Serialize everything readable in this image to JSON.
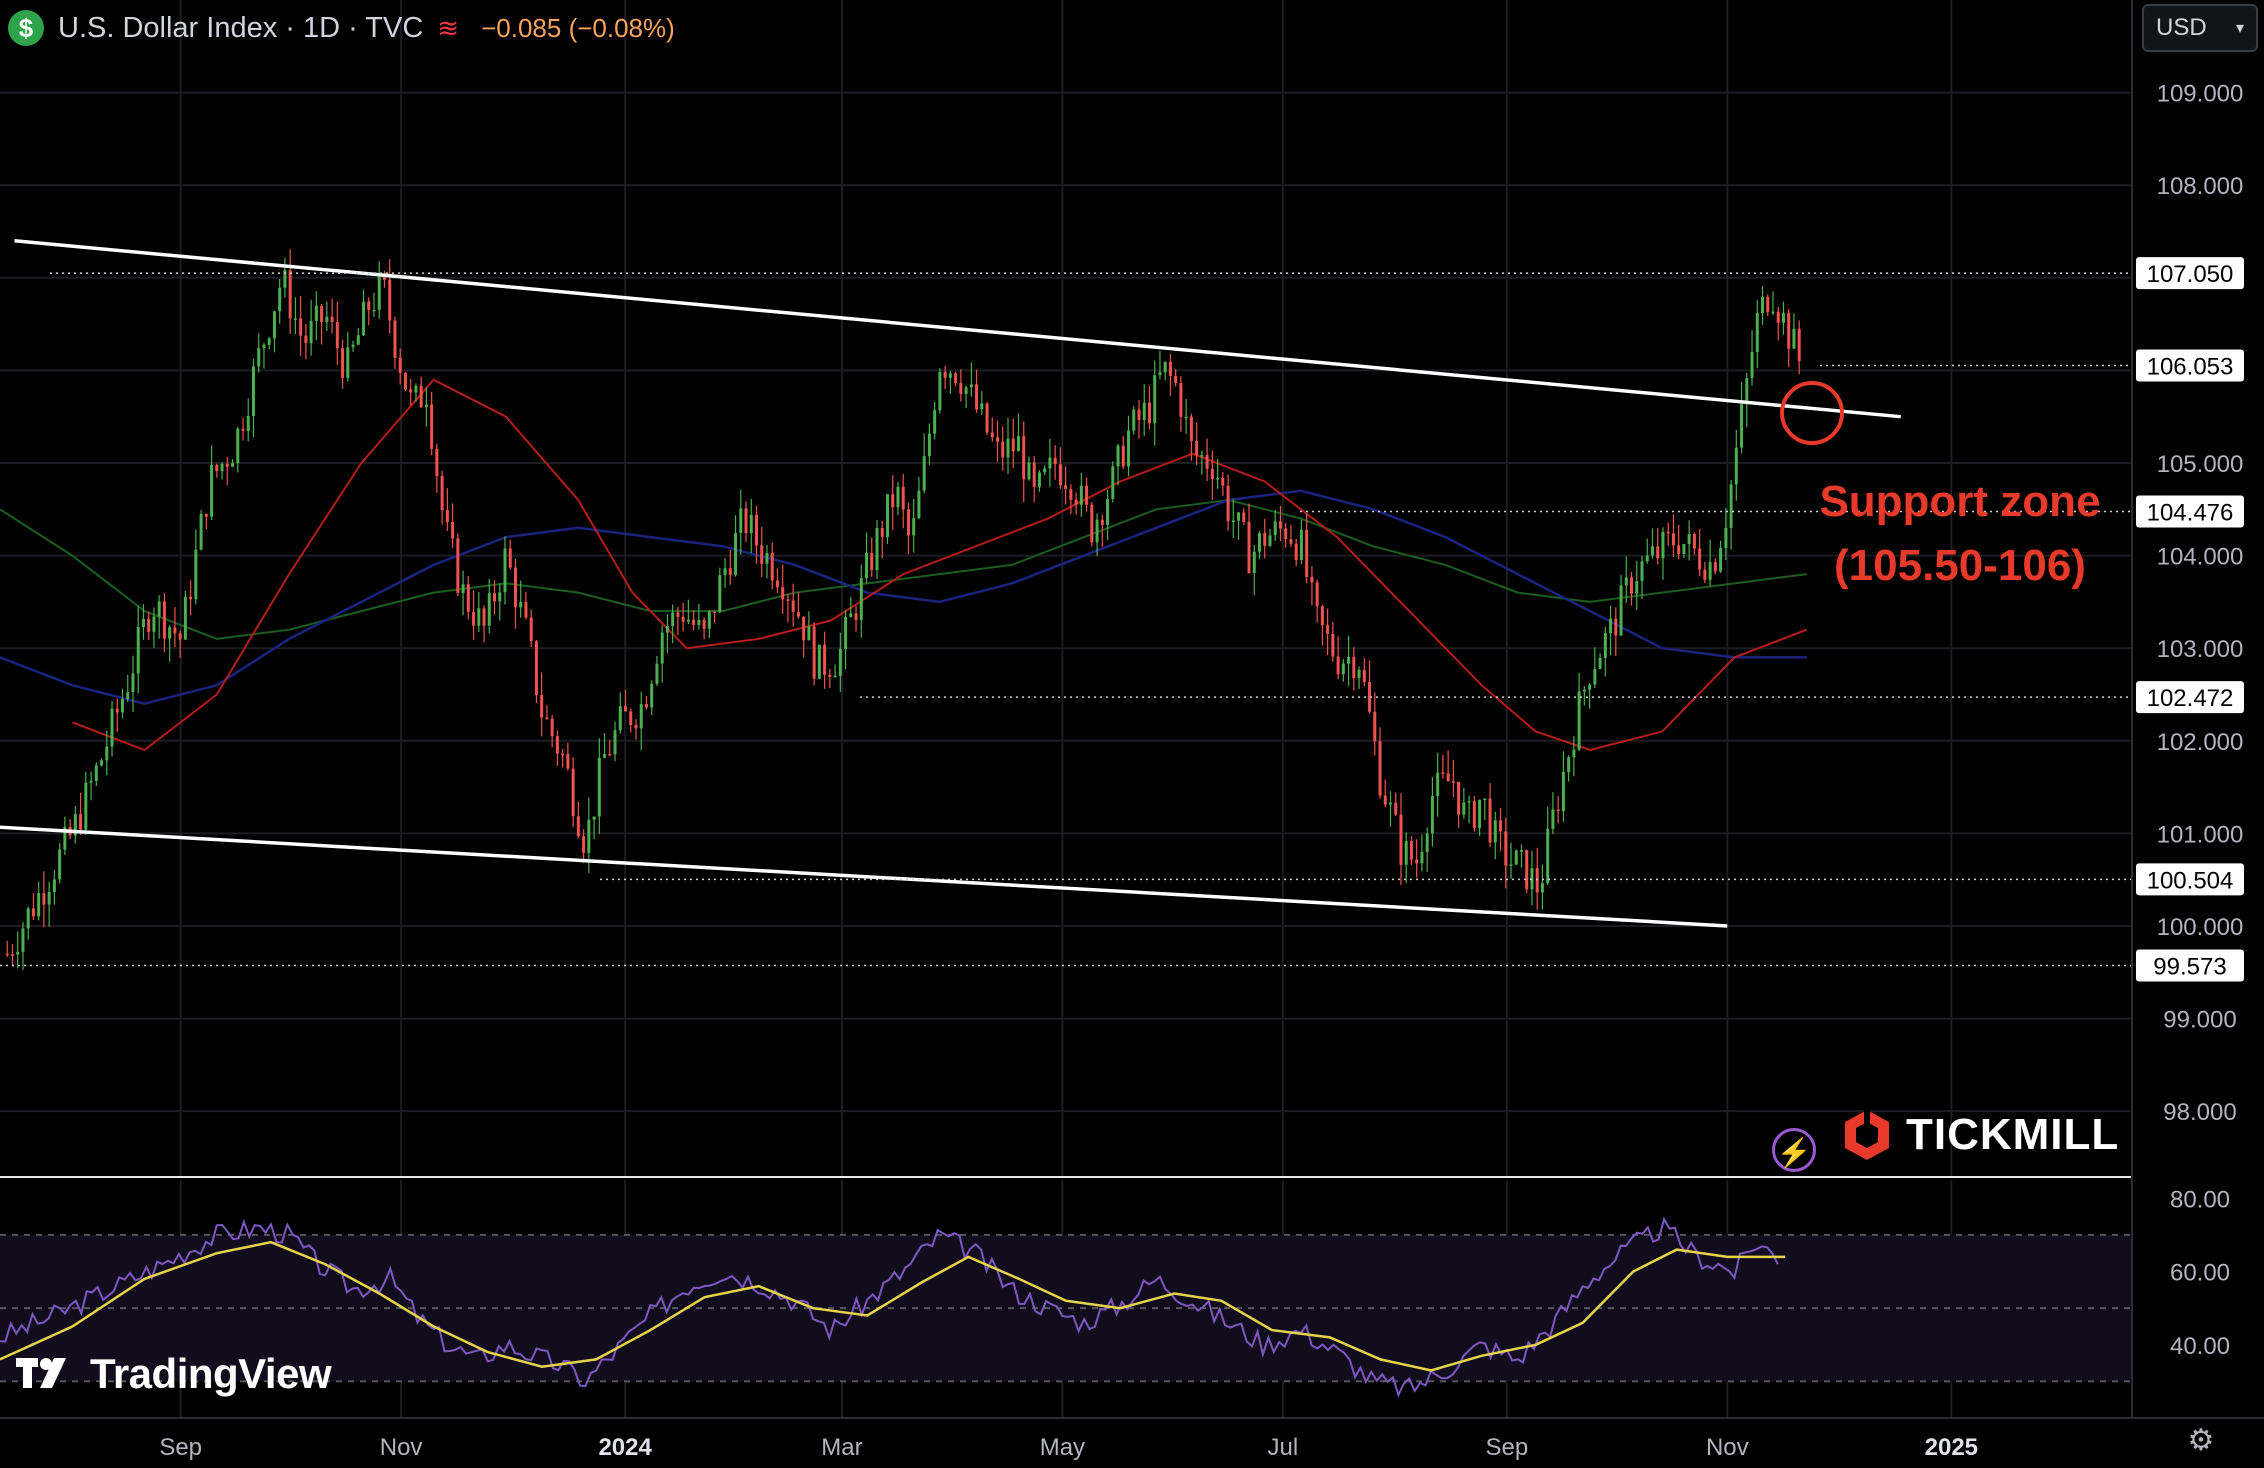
{
  "header": {
    "title": "U.S. Dollar Index · 1D · TVC",
    "change": "−0.085 (−0.08%)",
    "icon": "dollar-icon",
    "wave_icon": "wave-icon"
  },
  "currency_selector": {
    "value": "USD"
  },
  "annotation": {
    "line1": "Support zone",
    "line2": "(105.50-106)"
  },
  "branding": {
    "broker": "TICKMILL",
    "platform": "TradingView"
  },
  "colors": {
    "up": "#26a69a",
    "up_green": "#4caf50",
    "down": "#ef5350",
    "ma_red": "#b71c1c",
    "ma_blue": "#1a237e",
    "ma_green": "#1b5e20",
    "rsi": "#7e57c2",
    "rsi_signal": "#e6d34a",
    "annotation": "#e83a2a"
  },
  "chart_data": {
    "type": "candlestick",
    "price_axis": {
      "min": 97.3,
      "max": 110.0,
      "ticks": [
        "109.000",
        "108.000",
        "105.000",
        "104.000",
        "103.000",
        "102.000",
        "101.000",
        "100.000",
        "99.000",
        "98.000"
      ]
    },
    "price_tags": [
      "107.050",
      "106.053",
      "104.476",
      "102.472",
      "100.504",
      "99.573"
    ],
    "price_tag_values": [
      107.05,
      106.053,
      104.476,
      102.472,
      100.504,
      99.573
    ],
    "time_labels": [
      "Sep",
      "Nov",
      "2024",
      "Mar",
      "May",
      "Jul",
      "Sep",
      "Nov",
      "2025"
    ],
    "time_label_days": [
      30,
      91,
      153,
      213,
      274,
      335,
      397,
      458,
      520
    ],
    "day_range": [
      -20,
      570
    ],
    "price_path": [
      [
        -18,
        99.7
      ],
      [
        0,
        101.0
      ],
      [
        8,
        101.8
      ],
      [
        15,
        102.6
      ],
      [
        22,
        103.5
      ],
      [
        30,
        103.1
      ],
      [
        38,
        104.8
      ],
      [
        45,
        105.2
      ],
      [
        52,
        106.2
      ],
      [
        58,
        107.0
      ],
      [
        64,
        106.3
      ],
      [
        70,
        106.6
      ],
      [
        76,
        106.0
      ],
      [
        82,
        106.7
      ],
      [
        86,
        106.9
      ],
      [
        90,
        106.2
      ],
      [
        94,
        105.6
      ],
      [
        98,
        105.8
      ],
      [
        103,
        104.3
      ],
      [
        108,
        103.6
      ],
      [
        114,
        103.2
      ],
      [
        120,
        104.0
      ],
      [
        126,
        103.1
      ],
      [
        130,
        102.3
      ],
      [
        136,
        101.8
      ],
      [
        142,
        100.9
      ],
      [
        147,
        101.8
      ],
      [
        152,
        102.2
      ],
      [
        158,
        102.4
      ],
      [
        163,
        103.2
      ],
      [
        169,
        103.4
      ],
      [
        175,
        103.1
      ],
      [
        180,
        103.8
      ],
      [
        186,
        104.4
      ],
      [
        190,
        104.1
      ],
      [
        196,
        103.8
      ],
      [
        202,
        103.3
      ],
      [
        206,
        102.8
      ],
      [
        212,
        102.9
      ],
      [
        218,
        103.6
      ],
      [
        223,
        104.2
      ],
      [
        228,
        104.7
      ],
      [
        232,
        104.1
      ],
      [
        236,
        105.0
      ],
      [
        240,
        106.1
      ],
      [
        245,
        106.0
      ],
      [
        250,
        105.6
      ],
      [
        256,
        105.1
      ],
      [
        262,
        105.2
      ],
      [
        266,
        104.6
      ],
      [
        272,
        105.0
      ],
      [
        277,
        104.8
      ],
      [
        282,
        104.3
      ],
      [
        288,
        104.8
      ],
      [
        292,
        105.3
      ],
      [
        298,
        105.6
      ],
      [
        302,
        106.0
      ],
      [
        306,
        105.8
      ],
      [
        310,
        105.1
      ],
      [
        316,
        105.0
      ],
      [
        320,
        104.5
      ],
      [
        326,
        104.0
      ],
      [
        330,
        104.2
      ],
      [
        336,
        104.3
      ],
      [
        340,
        104.1
      ],
      [
        344,
        103.3
      ],
      [
        350,
        102.9
      ],
      [
        356,
        102.9
      ],
      [
        362,
        101.6
      ],
      [
        368,
        100.8
      ],
      [
        372,
        100.7
      ],
      [
        376,
        101.4
      ],
      [
        382,
        101.6
      ],
      [
        386,
        101.1
      ],
      [
        390,
        101.4
      ],
      [
        394,
        100.9
      ],
      [
        398,
        100.7
      ],
      [
        402,
        100.6
      ],
      [
        406,
        100.4
      ],
      [
        410,
        101.2
      ],
      [
        416,
        102.2
      ],
      [
        420,
        102.8
      ],
      [
        426,
        103.2
      ],
      [
        432,
        103.8
      ],
      [
        438,
        104.0
      ],
      [
        444,
        104.2
      ],
      [
        450,
        104.0
      ],
      [
        454,
        103.9
      ],
      [
        458,
        104.5
      ],
      [
        462,
        105.5
      ],
      [
        466,
        106.5
      ],
      [
        470,
        106.9
      ],
      [
        474,
        106.5
      ],
      [
        478,
        106.1
      ]
    ],
    "ma_red": [
      [
        0,
        102.2
      ],
      [
        20,
        101.9
      ],
      [
        40,
        102.5
      ],
      [
        60,
        103.8
      ],
      [
        80,
        105.0
      ],
      [
        100,
        105.9
      ],
      [
        120,
        105.5
      ],
      [
        140,
        104.6
      ],
      [
        155,
        103.6
      ],
      [
        170,
        103.0
      ],
      [
        190,
        103.1
      ],
      [
        210,
        103.3
      ],
      [
        230,
        103.8
      ],
      [
        250,
        104.1
      ],
      [
        270,
        104.4
      ],
      [
        290,
        104.8
      ],
      [
        310,
        105.1
      ],
      [
        330,
        104.8
      ],
      [
        350,
        104.2
      ],
      [
        370,
        103.4
      ],
      [
        390,
        102.6
      ],
      [
        405,
        102.1
      ],
      [
        420,
        101.9
      ],
      [
        440,
        102.1
      ],
      [
        460,
        102.9
      ],
      [
        480,
        103.2
      ]
    ],
    "ma_blue": [
      [
        -20,
        102.9
      ],
      [
        0,
        102.6
      ],
      [
        20,
        102.4
      ],
      [
        40,
        102.6
      ],
      [
        60,
        103.1
      ],
      [
        80,
        103.5
      ],
      [
        100,
        103.9
      ],
      [
        120,
        104.2
      ],
      [
        140,
        104.3
      ],
      [
        160,
        104.2
      ],
      [
        180,
        104.1
      ],
      [
        200,
        103.9
      ],
      [
        220,
        103.6
      ],
      [
        240,
        103.5
      ],
      [
        260,
        103.7
      ],
      [
        280,
        104.0
      ],
      [
        300,
        104.3
      ],
      [
        320,
        104.6
      ],
      [
        340,
        104.7
      ],
      [
        360,
        104.5
      ],
      [
        380,
        104.2
      ],
      [
        400,
        103.8
      ],
      [
        420,
        103.4
      ],
      [
        440,
        103.0
      ],
      [
        460,
        102.9
      ],
      [
        480,
        102.9
      ]
    ],
    "ma_green": [
      [
        -20,
        104.5
      ],
      [
        0,
        104.0
      ],
      [
        20,
        103.4
      ],
      [
        40,
        103.1
      ],
      [
        60,
        103.2
      ],
      [
        80,
        103.4
      ],
      [
        100,
        103.6
      ],
      [
        120,
        103.7
      ],
      [
        140,
        103.6
      ],
      [
        160,
        103.4
      ],
      [
        180,
        103.4
      ],
      [
        200,
        103.6
      ],
      [
        220,
        103.7
      ],
      [
        240,
        103.8
      ],
      [
        260,
        103.9
      ],
      [
        280,
        104.2
      ],
      [
        300,
        104.5
      ],
      [
        320,
        104.6
      ],
      [
        340,
        104.4
      ],
      [
        360,
        104.1
      ],
      [
        380,
        103.9
      ],
      [
        400,
        103.6
      ],
      [
        420,
        103.5
      ],
      [
        440,
        103.6
      ],
      [
        460,
        103.7
      ],
      [
        480,
        103.8
      ]
    ],
    "trend_upper": [
      [
        -16,
        107.4
      ],
      [
        506,
        105.5
      ]
    ],
    "trend_lower": [
      [
        -35,
        101.1
      ],
      [
        458,
        100.0
      ]
    ],
    "rsi_axis": {
      "min": 20,
      "max": 85,
      "ticks": [
        "80.00",
        "60.00",
        "40.00"
      ],
      "levels": [
        70,
        50,
        30
      ]
    },
    "rsi": [
      [
        -20,
        42
      ],
      [
        -5,
        48
      ],
      [
        10,
        55
      ],
      [
        25,
        62
      ],
      [
        40,
        70
      ],
      [
        52,
        72
      ],
      [
        60,
        70
      ],
      [
        68,
        62
      ],
      [
        78,
        55
      ],
      [
        88,
        58
      ],
      [
        96,
        47
      ],
      [
        104,
        40
      ],
      [
        112,
        36
      ],
      [
        120,
        40
      ],
      [
        128,
        37
      ],
      [
        136,
        34
      ],
      [
        142,
        30
      ],
      [
        150,
        38
      ],
      [
        160,
        48
      ],
      [
        170,
        56
      ],
      [
        180,
        60
      ],
      [
        190,
        57
      ],
      [
        200,
        52
      ],
      [
        210,
        44
      ],
      [
        220,
        52
      ],
      [
        230,
        60
      ],
      [
        240,
        70
      ],
      [
        250,
        65
      ],
      [
        260,
        55
      ],
      [
        270,
        50
      ],
      [
        280,
        46
      ],
      [
        290,
        51
      ],
      [
        300,
        58
      ],
      [
        310,
        52
      ],
      [
        320,
        46
      ],
      [
        330,
        40
      ],
      [
        340,
        44
      ],
      [
        350,
        38
      ],
      [
        360,
        30
      ],
      [
        370,
        28
      ],
      [
        380,
        33
      ],
      [
        390,
        40
      ],
      [
        400,
        36
      ],
      [
        410,
        46
      ],
      [
        420,
        58
      ],
      [
        430,
        66
      ],
      [
        440,
        72
      ],
      [
        450,
        64
      ],
      [
        460,
        60
      ],
      [
        466,
        68
      ],
      [
        472,
        64
      ]
    ],
    "rsi_signal": [
      [
        -20,
        36
      ],
      [
        0,
        45
      ],
      [
        20,
        58
      ],
      [
        40,
        65
      ],
      [
        55,
        68
      ],
      [
        70,
        62
      ],
      [
        85,
        54
      ],
      [
        100,
        45
      ],
      [
        115,
        38
      ],
      [
        130,
        34
      ],
      [
        145,
        36
      ],
      [
        160,
        44
      ],
      [
        175,
        53
      ],
      [
        190,
        56
      ],
      [
        205,
        50
      ],
      [
        220,
        48
      ],
      [
        235,
        57
      ],
      [
        248,
        64
      ],
      [
        262,
        58
      ],
      [
        275,
        52
      ],
      [
        290,
        50
      ],
      [
        305,
        54
      ],
      [
        318,
        52
      ],
      [
        332,
        44
      ],
      [
        348,
        42
      ],
      [
        362,
        36
      ],
      [
        376,
        33
      ],
      [
        390,
        37
      ],
      [
        405,
        40
      ],
      [
        418,
        46
      ],
      [
        432,
        60
      ],
      [
        444,
        66
      ],
      [
        458,
        64
      ],
      [
        474,
        64
      ]
    ]
  }
}
